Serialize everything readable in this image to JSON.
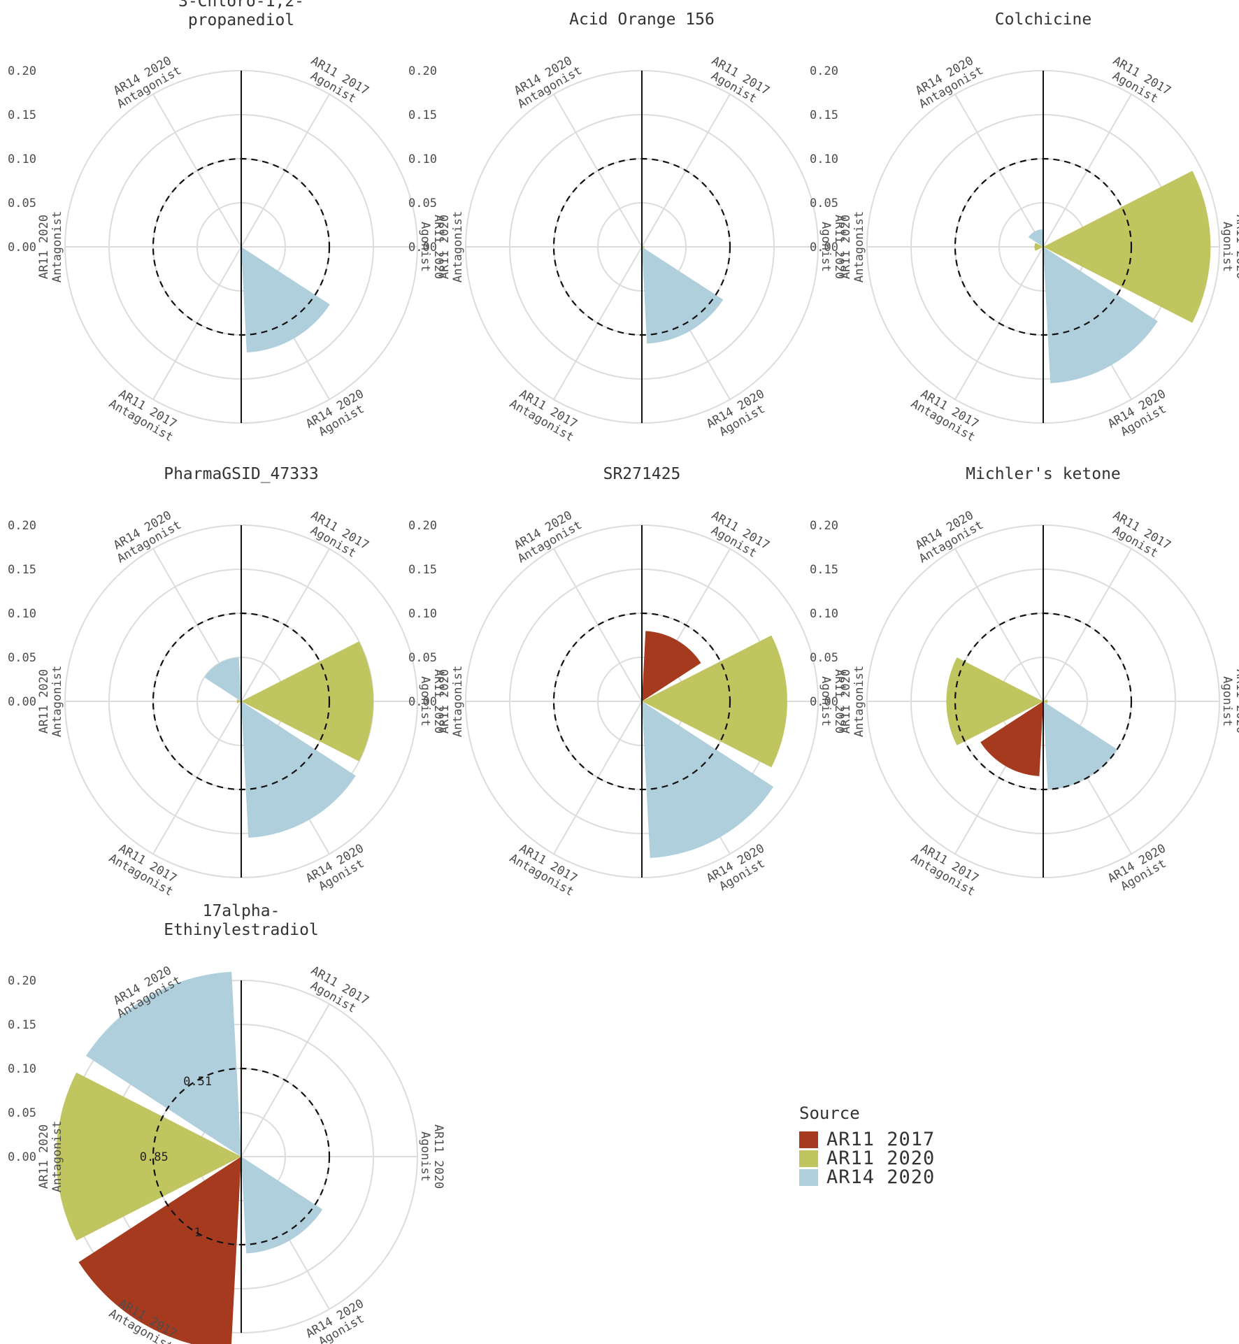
{
  "legend": {
    "title": "Source",
    "items": [
      {
        "label": "AR11 2017",
        "color": "#a63a1f"
      },
      {
        "label": "AR11 2020",
        "color": "#c0c55f"
      },
      {
        "label": "AR14 2020",
        "color": "#aecfdb"
      }
    ]
  },
  "chart_data": {
    "type": "polar-bar",
    "radial_ticks": [
      "0.00",
      "0.05",
      "0.10",
      "0.15",
      "0.20"
    ],
    "radial_range": [
      0,
      0.2
    ],
    "threshold": 0.1,
    "grid": true,
    "legend_position": "bottom-right",
    "categories": [
      {
        "line1": "AR11 2017",
        "line2": "Agonist"
      },
      {
        "line1": "AR11 2020",
        "line2": "Agonist"
      },
      {
        "line1": "AR14 2020",
        "line2": "Agonist"
      },
      {
        "line1": "AR11 2017",
        "line2": "Antagonist"
      },
      {
        "line1": "AR11 2020",
        "line2": "Antagonist"
      },
      {
        "line1": "AR14 2020",
        "line2": "Antagonist"
      }
    ],
    "panels": [
      {
        "title": [
          "3-Chloro-1,2-",
          "propanediol"
        ],
        "values": [
          0,
          0,
          0.12,
          0,
          0,
          0
        ],
        "labels": [
          "",
          "",
          "",
          "",
          "",
          ""
        ]
      },
      {
        "title": [
          "Acid Orange 156"
        ],
        "values": [
          0,
          0.003,
          0.11,
          0,
          0,
          0
        ],
        "labels": [
          "",
          "",
          "",
          "",
          "",
          ""
        ]
      },
      {
        "title": [
          "Colchicine"
        ],
        "values": [
          0,
          0.19,
          0.155,
          0,
          0.01,
          0.02
        ],
        "labels": [
          "",
          "",
          "",
          "",
          "",
          ""
        ]
      },
      {
        "title": [
          "PharmaGSID_47333"
        ],
        "values": [
          0,
          0.15,
          0.155,
          0,
          0.005,
          0.05
        ],
        "labels": [
          "",
          "",
          "",
          "",
          "",
          ""
        ]
      },
      {
        "title": [
          "SR271425"
        ],
        "values": [
          0.08,
          0.165,
          0.178,
          0,
          0,
          0
        ],
        "labels": [
          "",
          "",
          "",
          "",
          "",
          ""
        ]
      },
      {
        "title": [
          "Michler's ketone"
        ],
        "values": [
          0,
          0.005,
          0.1,
          0.085,
          0.11,
          0
        ],
        "labels": [
          "",
          "",
          "",
          "",
          "",
          ""
        ]
      },
      {
        "title": [
          "17alpha-",
          "Ethinylestradiol"
        ],
        "values": [
          0,
          0,
          0.11,
          0.22,
          0.21,
          0.21
        ],
        "labels": [
          "",
          "",
          "",
          "1",
          "0.85",
          "0.51"
        ]
      }
    ]
  }
}
